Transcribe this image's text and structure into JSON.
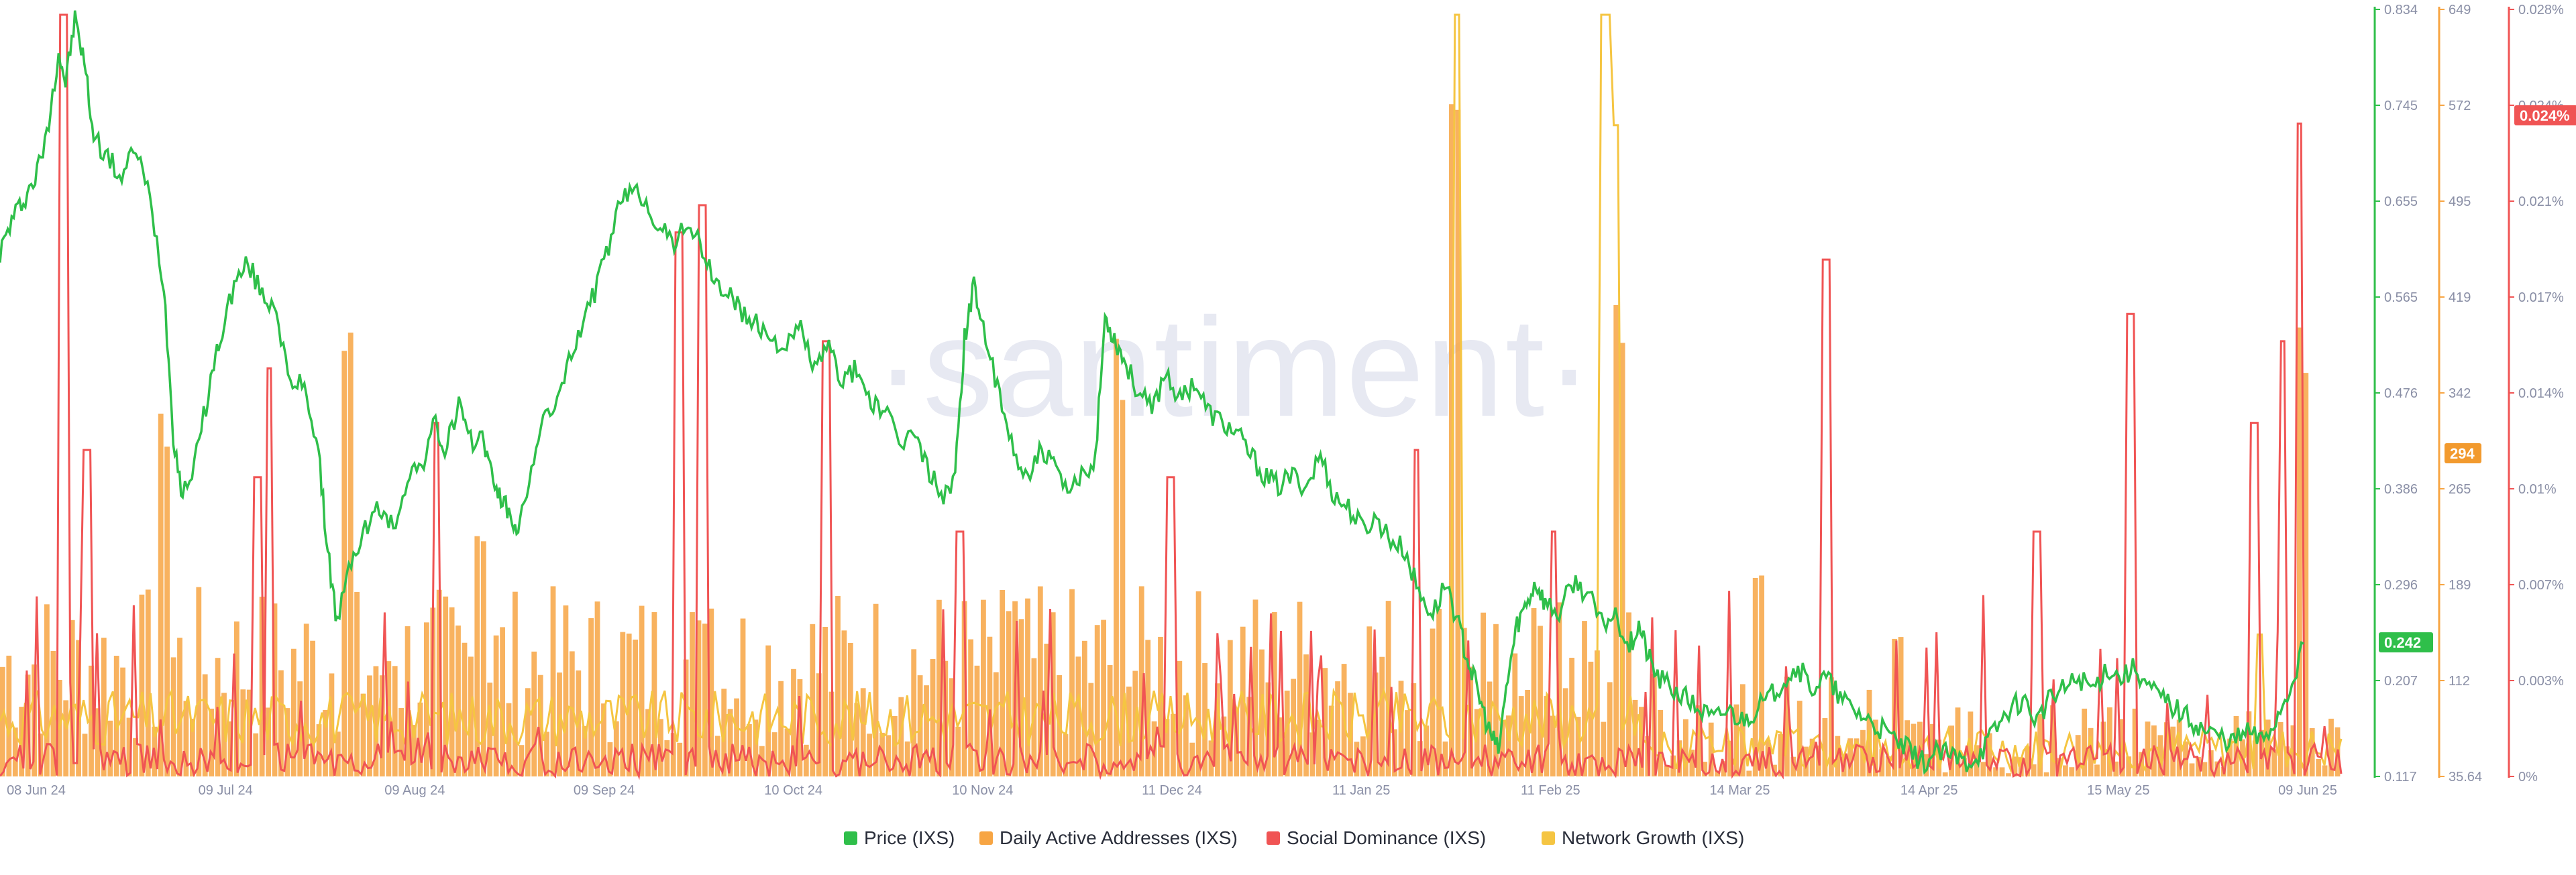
{
  "watermark": "·santiment·",
  "chart_data": {
    "type": "bar+line",
    "x_ticks": [
      "08 Jun 24",
      "09 Jul 24",
      "09 Aug 24",
      "09 Sep 24",
      "10 Oct 24",
      "10 Nov 24",
      "11 Dec 24",
      "11 Jan 25",
      "11 Feb 25",
      "14 Mar 25",
      "14 Apr 25",
      "15 May 25",
      "09 Jun 25"
    ],
    "axes": {
      "price": {
        "ticks": [
          "0.834",
          "0.745",
          "0.655",
          "0.565",
          "0.476",
          "0.386",
          "0.296",
          "0.207",
          "0.117"
        ],
        "range": [
          0.117,
          0.834
        ],
        "color": "#2fbf4a"
      },
      "daa": {
        "ticks": [
          "649",
          "572",
          "495",
          "419",
          "342",
          "265",
          "189",
          "112",
          "35.64"
        ],
        "range": [
          35.64,
          649
        ],
        "color": "#f7a543"
      },
      "social": {
        "ticks": [
          "0.028%",
          "0.024%",
          "0.021%",
          "0.017%",
          "0.014%",
          "0.01%",
          "0.007%",
          "0.003%",
          "0%"
        ],
        "range": [
          0,
          0.028
        ],
        "color": "#f05454"
      }
    },
    "last_values": {
      "price": "0.242",
      "daa": "294",
      "social": "0.024%"
    },
    "legend": [
      "Price (IXS)",
      "Daily Active Addresses (IXS)",
      "Social Dominance (IXS)",
      "Network Growth (IXS)"
    ],
    "series": [
      {
        "name": "Price (IXS)",
        "kind": "line",
        "color": "#2fbf4a",
        "axis": "price",
        "points": [
          [
            0,
            0.61
          ],
          [
            0.005,
            0.64
          ],
          [
            0.01,
            0.66
          ],
          [
            0.015,
            0.68
          ],
          [
            0.02,
            0.72
          ],
          [
            0.025,
            0.8
          ],
          [
            0.028,
            0.77
          ],
          [
            0.032,
            0.83
          ],
          [
            0.036,
            0.79
          ],
          [
            0.04,
            0.72
          ],
          [
            0.046,
            0.7
          ],
          [
            0.052,
            0.68
          ],
          [
            0.058,
            0.71
          ],
          [
            0.064,
            0.66
          ],
          [
            0.07,
            0.58
          ],
          [
            0.074,
            0.44
          ],
          [
            0.078,
            0.38
          ],
          [
            0.084,
            0.42
          ],
          [
            0.09,
            0.49
          ],
          [
            0.094,
            0.53
          ],
          [
            0.1,
            0.58
          ],
          [
            0.106,
            0.6
          ],
          [
            0.112,
            0.57
          ],
          [
            0.118,
            0.56
          ],
          [
            0.124,
            0.48
          ],
          [
            0.13,
            0.49
          ],
          [
            0.136,
            0.42
          ],
          [
            0.14,
            0.33
          ],
          [
            0.144,
            0.26
          ],
          [
            0.15,
            0.32
          ],
          [
            0.156,
            0.35
          ],
          [
            0.162,
            0.37
          ],
          [
            0.168,
            0.35
          ],
          [
            0.174,
            0.4
          ],
          [
            0.18,
            0.41
          ],
          [
            0.186,
            0.45
          ],
          [
            0.19,
            0.42
          ],
          [
            0.196,
            0.47
          ],
          [
            0.2,
            0.43
          ],
          [
            0.206,
            0.44
          ],
          [
            0.21,
            0.4
          ],
          [
            0.214,
            0.38
          ],
          [
            0.218,
            0.36
          ],
          [
            0.222,
            0.35
          ],
          [
            0.228,
            0.42
          ],
          [
            0.234,
            0.46
          ],
          [
            0.24,
            0.48
          ],
          [
            0.246,
            0.53
          ],
          [
            0.252,
            0.56
          ],
          [
            0.258,
            0.6
          ],
          [
            0.264,
            0.65
          ],
          [
            0.27,
            0.67
          ],
          [
            0.276,
            0.66
          ],
          [
            0.282,
            0.63
          ],
          [
            0.288,
            0.62
          ],
          [
            0.294,
            0.64
          ],
          [
            0.3,
            0.61
          ],
          [
            0.306,
            0.58
          ],
          [
            0.312,
            0.57
          ],
          [
            0.318,
            0.55
          ],
          [
            0.324,
            0.54
          ],
          [
            0.33,
            0.53
          ],
          [
            0.336,
            0.52
          ],
          [
            0.342,
            0.54
          ],
          [
            0.348,
            0.5
          ],
          [
            0.354,
            0.52
          ],
          [
            0.36,
            0.49
          ],
          [
            0.366,
            0.5
          ],
          [
            0.372,
            0.47
          ],
          [
            0.378,
            0.46
          ],
          [
            0.384,
            0.43
          ],
          [
            0.39,
            0.44
          ],
          [
            0.396,
            0.41
          ],
          [
            0.402,
            0.38
          ],
          [
            0.408,
            0.4
          ],
          [
            0.412,
            0.53
          ],
          [
            0.416,
            0.58
          ],
          [
            0.42,
            0.54
          ],
          [
            0.426,
            0.48
          ],
          [
            0.432,
            0.43
          ],
          [
            0.438,
            0.4
          ],
          [
            0.444,
            0.42
          ],
          [
            0.45,
            0.41
          ],
          [
            0.456,
            0.38
          ],
          [
            0.462,
            0.4
          ],
          [
            0.468,
            0.42
          ],
          [
            0.472,
            0.55
          ],
          [
            0.476,
            0.53
          ],
          [
            0.48,
            0.51
          ],
          [
            0.486,
            0.48
          ],
          [
            0.492,
            0.46
          ],
          [
            0.498,
            0.5
          ],
          [
            0.504,
            0.47
          ],
          [
            0.51,
            0.49
          ],
          [
            0.516,
            0.46
          ],
          [
            0.522,
            0.45
          ],
          [
            0.528,
            0.44
          ],
          [
            0.534,
            0.42
          ],
          [
            0.54,
            0.4
          ],
          [
            0.546,
            0.39
          ],
          [
            0.552,
            0.4
          ],
          [
            0.558,
            0.39
          ],
          [
            0.564,
            0.42
          ],
          [
            0.57,
            0.38
          ],
          [
            0.576,
            0.37
          ],
          [
            0.582,
            0.35
          ],
          [
            0.588,
            0.36
          ],
          [
            0.594,
            0.34
          ],
          [
            0.6,
            0.33
          ],
          [
            0.606,
            0.29
          ],
          [
            0.612,
            0.27
          ],
          [
            0.618,
            0.3
          ],
          [
            0.624,
            0.25
          ],
          [
            0.628,
            0.22
          ],
          [
            0.632,
            0.19
          ],
          [
            0.636,
            0.16
          ],
          [
            0.64,
            0.14
          ],
          [
            0.644,
            0.21
          ],
          [
            0.648,
            0.26
          ],
          [
            0.652,
            0.28
          ],
          [
            0.656,
            0.3
          ],
          [
            0.66,
            0.28
          ],
          [
            0.666,
            0.27
          ],
          [
            0.672,
            0.3
          ],
          [
            0.678,
            0.29
          ],
          [
            0.684,
            0.26
          ],
          [
            0.69,
            0.27
          ],
          [
            0.696,
            0.24
          ],
          [
            0.7,
            0.26
          ],
          [
            0.704,
            0.23
          ],
          [
            0.708,
            0.21
          ],
          [
            0.714,
            0.2
          ],
          [
            0.72,
            0.19
          ],
          [
            0.726,
            0.18
          ],
          [
            0.732,
            0.17
          ],
          [
            0.738,
            0.18
          ],
          [
            0.744,
            0.17
          ],
          [
            0.75,
            0.18
          ],
          [
            0.756,
            0.19
          ],
          [
            0.762,
            0.21
          ],
          [
            0.768,
            0.22
          ],
          [
            0.774,
            0.2
          ],
          [
            0.78,
            0.21
          ],
          [
            0.786,
            0.19
          ],
          [
            0.792,
            0.18
          ],
          [
            0.798,
            0.17
          ],
          [
            0.804,
            0.16
          ],
          [
            0.81,
            0.15
          ],
          [
            0.816,
            0.14
          ],
          [
            0.822,
            0.13
          ],
          [
            0.828,
            0.14
          ],
          [
            0.834,
            0.135
          ],
          [
            0.84,
            0.13
          ],
          [
            0.846,
            0.14
          ],
          [
            0.852,
            0.16
          ],
          [
            0.858,
            0.18
          ],
          [
            0.864,
            0.19
          ],
          [
            0.87,
            0.17
          ],
          [
            0.876,
            0.19
          ],
          [
            0.882,
            0.2
          ],
          [
            0.888,
            0.21
          ],
          [
            0.894,
            0.2
          ],
          [
            0.9,
            0.22
          ],
          [
            0.906,
            0.21
          ],
          [
            0.912,
            0.22
          ],
          [
            0.918,
            0.2
          ],
          [
            0.924,
            0.19
          ],
          [
            0.93,
            0.18
          ],
          [
            0.936,
            0.17
          ],
          [
            0.942,
            0.16
          ],
          [
            0.948,
            0.155
          ],
          [
            0.954,
            0.15
          ],
          [
            0.96,
            0.16
          ],
          [
            0.966,
            0.15
          ],
          [
            0.972,
            0.17
          ],
          [
            0.978,
            0.2
          ],
          [
            0.984,
            0.242
          ]
        ]
      },
      {
        "name": "Daily Active Addresses (IXS)",
        "kind": "bars",
        "color": "#f7a543",
        "axis": "daa",
        "count": 370,
        "spikes": [
          [
            0.07,
            330
          ],
          [
            0.148,
            415
          ],
          [
            0.167,
            140
          ],
          [
            0.203,
            255
          ],
          [
            0.3,
            185
          ],
          [
            0.43,
            185
          ],
          [
            0.476,
            395
          ],
          [
            0.62,
            647
          ],
          [
            0.69,
            420
          ],
          [
            0.75,
            200
          ],
          [
            0.81,
            160
          ],
          [
            0.982,
            420
          ]
        ]
      },
      {
        "name": "Social Dominance (IXS)",
        "kind": "line",
        "color": "#f05454",
        "axis": "social",
        "spikes": [
          [
            0.027,
            0.028
          ],
          [
            0.037,
            0.012
          ],
          [
            0.11,
            0.011
          ],
          [
            0.115,
            0.015
          ],
          [
            0.186,
            0.013
          ],
          [
            0.3,
            0.021
          ],
          [
            0.29,
            0.02
          ],
          [
            0.353,
            0.016
          ],
          [
            0.41,
            0.009
          ],
          [
            0.5,
            0.011
          ],
          [
            0.605,
            0.012
          ],
          [
            0.664,
            0.009
          ],
          [
            0.78,
            0.019
          ],
          [
            0.87,
            0.009
          ],
          [
            0.91,
            0.017
          ],
          [
            0.963,
            0.013
          ],
          [
            0.975,
            0.016
          ],
          [
            0.982,
            0.024
          ]
        ]
      },
      {
        "name": "Network Growth (IXS)",
        "kind": "line",
        "color": "#f5c542",
        "axis": "daa",
        "spikes": [
          [
            0.622,
            649
          ],
          [
            0.686,
            649
          ],
          [
            0.69,
            560
          ],
          [
            0.965,
            150
          ]
        ]
      }
    ]
  }
}
